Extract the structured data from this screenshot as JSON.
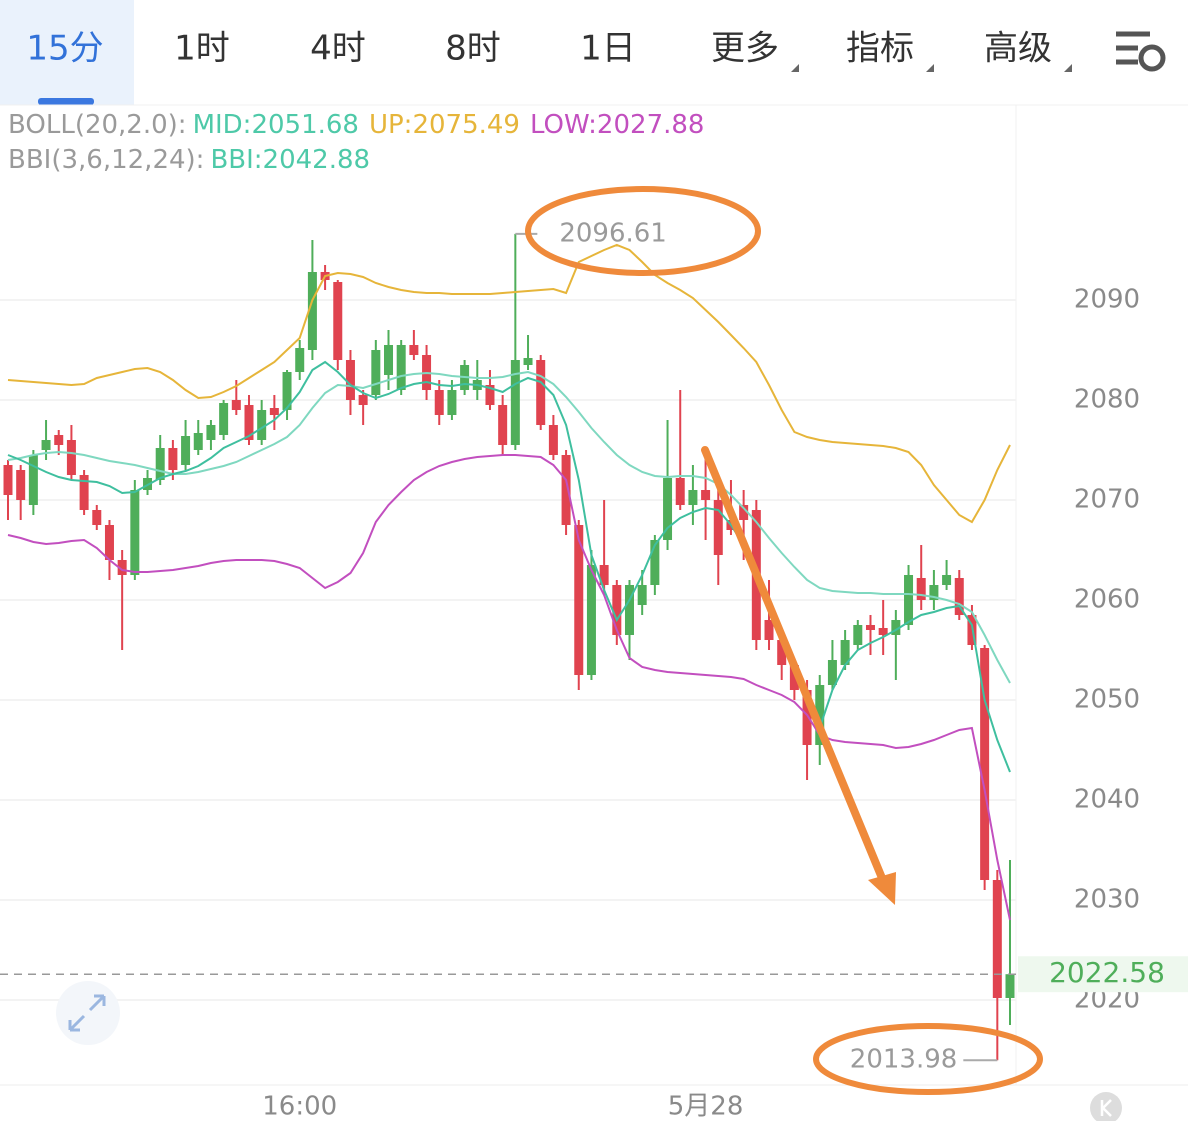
{
  "toolbar": {
    "tabs": [
      "15分",
      "1时",
      "4时",
      "8时",
      "1日"
    ],
    "menus": [
      "更多",
      "指标",
      "高级"
    ],
    "active": 0
  },
  "chart_data": {
    "type": "candlestick",
    "indicators": [
      {
        "label": "BOLL(20,2.0):",
        "items": [
          {
            "text": "MID:2051.68",
            "color": "#4ec9a8"
          },
          {
            "text": "UP:2075.49",
            "color": "#e6b53a"
          },
          {
            "text": "LOW:2027.88",
            "color": "#c24fbf"
          }
        ]
      },
      {
        "label": "BBI(3,6,12,24):",
        "items": [
          {
            "text": "BBI:2042.88",
            "color": "#4ec9a8"
          }
        ]
      }
    ],
    "categories": [
      null,
      null,
      null,
      null,
      null,
      null,
      null,
      null,
      null,
      null,
      null,
      null,
      null,
      null,
      null,
      null,
      null,
      null,
      null,
      null,
      null,
      null,
      null,
      "16:00",
      null,
      null,
      null,
      null,
      null,
      null,
      null,
      null,
      null,
      null,
      null,
      null,
      null,
      null,
      null,
      null,
      null,
      null,
      null,
      null,
      null,
      null,
      null,
      null,
      null,
      null,
      null,
      null,
      null,
      null,
      null,
      "5月28",
      null,
      null,
      null,
      null,
      null,
      null,
      null,
      null,
      null,
      null,
      null,
      null,
      null,
      null,
      null,
      null,
      null,
      null,
      null,
      null,
      null,
      null,
      null,
      null
    ],
    "open": [
      2073.5,
      2073,
      2069.5,
      2075,
      2076.5,
      2076,
      2072.5,
      2069,
      2067.5,
      2064,
      2062.5,
      2071,
      2072,
      2075.2,
      2073.5,
      2075,
      2076,
      2076.5,
      2080,
      2079.5,
      2076,
      2079.2,
      2079,
      2082.8,
      2085,
      2092.8,
      2091.8,
      2084,
      2080.5,
      2080.5,
      2082.5,
      2081,
      2085.5,
      2084.5,
      2081,
      2078.5,
      2081,
      2081,
      2081.5,
      2079.5,
      2075.5,
      2083.5,
      2084,
      2077.5,
      2074.5,
      2067.5,
      2052.5,
      2063.5,
      2061.5,
      2056.5,
      2059.5,
      2061.5,
      2066,
      2072.2,
      2069.5,
      2071,
      2070,
      2068,
      2069.5,
      2069,
      2058,
      2056,
      2053.5,
      2051,
      2045.5,
      2051.5,
      2053.5,
      2055.5,
      2057.5,
      2057.2,
      2056.5,
      2057.5,
      2062.2,
      2060,
      2061.5,
      2062.2,
      2058.5,
      2055.2,
      2032,
      2020.2
    ],
    "high": [
      2074,
      2073.5,
      2075,
      2078,
      2077,
      2077.5,
      2073,
      2069.5,
      2068,
      2065,
      2072,
      2073,
      2076.5,
      2076,
      2078,
      2078,
      2078,
      2080,
      2082,
      2080.5,
      2080,
      2080.5,
      2083,
      2086,
      2096,
      2093.5,
      2092,
      2085,
      2081,
      2086,
      2087,
      2086,
      2087,
      2085.5,
      2082,
      2082,
      2084,
      2084,
      2083,
      2080.5,
      2096.61,
      2086.5,
      2084.5,
      2078.5,
      2075,
      2068,
      2065,
      2070,
      2062,
      2062,
      2063,
      2066.5,
      2078,
      2081,
      2073.5,
      2075,
      2071.5,
      2072,
      2071,
      2070,
      2062,
      2057,
      2054,
      2052,
      2052.5,
      2056,
      2057,
      2058,
      2058.5,
      2060,
      2059,
      2063.5,
      2065.5,
      2063,
      2064,
      2063,
      2059.5,
      2055.5,
      2033,
      2034
    ],
    "low": [
      2068,
      2068,
      2068.5,
      2074,
      2074.5,
      2072,
      2068.5,
      2067,
      2062,
      2055,
      2062,
      2070.5,
      2071.5,
      2072,
      2073,
      2074.5,
      2075,
      2076,
      2078.5,
      2075.5,
      2075.5,
      2077,
      2078,
      2082,
      2084,
      2091,
      2083,
      2078.5,
      2077.5,
      2080,
      2081,
      2080.5,
      2084,
      2080,
      2077.5,
      2078,
      2080.5,
      2080,
      2079,
      2074.5,
      2075,
      2083,
      2077,
      2074,
      2066.5,
      2051,
      2052,
      2060.5,
      2055.5,
      2054,
      2058.5,
      2060.5,
      2065,
      2069,
      2067.5,
      2066,
      2061.5,
      2066.5,
      2064,
      2055,
      2055,
      2052,
      2050,
      2042,
      2043.5,
      2051,
      2053,
      2055,
      2054.5,
      2054.5,
      2052,
      2057,
      2059,
      2059,
      2061,
      2058,
      2055,
      2031,
      2013.98,
      2017.5
    ],
    "close": [
      2070.5,
      2070,
      2074.5,
      2076,
      2075.5,
      2072.5,
      2069,
      2067.5,
      2064,
      2062.5,
      2071,
      2072.2,
      2075.2,
      2073,
      2076.4,
      2076.7,
      2077.5,
      2079.7,
      2079,
      2076,
      2079,
      2078.5,
      2082.8,
      2085.2,
      2092.8,
      2092,
      2084,
      2080,
      2079.5,
      2085,
      2085.5,
      2085.5,
      2084.5,
      2081,
      2078.5,
      2081,
      2083.5,
      2082,
      2079.5,
      2075.5,
      2084,
      2084.2,
      2077.5,
      2074.5,
      2067.5,
      2052.5,
      2063.5,
      2061.5,
      2056.5,
      2061.5,
      2061.5,
      2066,
      2072.2,
      2069.5,
      2071,
      2070,
      2064.5,
      2067,
      2068,
      2056,
      2056,
      2053.5,
      2051,
      2045.5,
      2051.5,
      2054,
      2056,
      2057.5,
      2057,
      2056.5,
      2058,
      2062.5,
      2060,
      2061.5,
      2062.5,
      2058.5,
      2055.5,
      2032,
      2020.2,
      2022.58
    ],
    "up_color": "#4fae5a",
    "down_color": "#e0434f",
    "series": [
      {
        "color": "#e6b53a",
        "values": [
          2082,
          2081.9,
          2081.8,
          2081.7,
          2081.6,
          2081.5,
          2081.6,
          2082.2,
          2082.5,
          2082.8,
          2083.1,
          2083.2,
          2082.8,
          2082,
          2081,
          2080.2,
          2080.3,
          2080.8,
          2081.4,
          2082.2,
          2083,
          2083.8,
          2085,
          2086.2,
          2090,
          2092.4,
          2092.7,
          2092.6,
          2092.3,
          2091.7,
          2091.3,
          2091,
          2090.8,
          2090.7,
          2090.7,
          2090.6,
          2090.6,
          2090.6,
          2090.6,
          2090.7,
          2090.8,
          2090.9,
          2091,
          2091.1,
          2090.7,
          2093.8,
          2094.4,
          2095,
          2095.5,
          2095,
          2093.8,
          2092.5,
          2091.7,
          2091,
          2090.2,
          2089,
          2087.8,
          2086.5,
          2085.2,
          2083.8,
          2081.5,
          2079,
          2076.8,
          2076.3,
          2076,
          2075.8,
          2075.7,
          2075.6,
          2075.5,
          2075.4,
          2075.2,
          2074.8,
          2073.5,
          2071.5,
          2070,
          2068.5,
          2067.8,
          2070,
          2073,
          2075.5
        ]
      },
      {
        "color": "#7fd8c0",
        "values": [
          2074,
          2074.2,
          2074.5,
          2074.7,
          2074.8,
          2074.7,
          2074.5,
          2074.2,
          2073.9,
          2073.7,
          2073.5,
          2073.2,
          2072.9,
          2072.6,
          2072.6,
          2072.8,
          2073.1,
          2073.4,
          2073.8,
          2074.4,
          2075,
          2075.6,
          2076.3,
          2077.5,
          2079.2,
          2080.7,
          2081.5,
          2081.4,
          2081.2,
          2081.6,
          2082,
          2082.4,
          2082.6,
          2082.7,
          2082.6,
          2082.4,
          2082.3,
          2082.2,
          2082.2,
          2082.3,
          2082.6,
          2082.8,
          2082.4,
          2081.6,
          2080.3,
          2078.8,
          2077.2,
          2075.8,
          2074.5,
          2073.5,
          2072.8,
          2072.4,
          2072.3,
          2072.4,
          2072.4,
          2072.2,
          2071.6,
          2070.5,
          2069.2,
          2067.8,
          2066.2,
          2064.7,
          2063.3,
          2062,
          2061.2,
          2060.9,
          2060.8,
          2060.7,
          2060.7,
          2060.6,
          2060.6,
          2060.6,
          2060.5,
          2060.3,
          2060,
          2059.6,
          2058.8,
          2056.5,
          2054,
          2051.7
        ]
      },
      {
        "color": "#c24fbf",
        "values": [
          2066.5,
          2066.2,
          2065.8,
          2065.6,
          2065.7,
          2065.9,
          2066,
          2065.2,
          2064,
          2063,
          2062.8,
          2062.8,
          2062.9,
          2063,
          2063.2,
          2063.4,
          2063.7,
          2063.9,
          2064,
          2064,
          2064,
          2063.9,
          2063.6,
          2063.2,
          2062.2,
          2061.2,
          2061.8,
          2062.7,
          2064.7,
          2067.8,
          2069.5,
          2070.8,
          2072,
          2072.8,
          2073.4,
          2073.8,
          2074.1,
          2074.3,
          2074.4,
          2074.5,
          2074.5,
          2074.4,
          2074.3,
          2073.5,
          2072,
          2066,
          2063,
          2060.5,
          2057,
          2054.2,
          2053.3,
          2053,
          2052.8,
          2052.7,
          2052.6,
          2052.5,
          2052.4,
          2052.3,
          2052.1,
          2051.5,
          2051,
          2050.5,
          2049.8,
          2048.5,
          2046.5,
          2046,
          2045.8,
          2045.7,
          2045.6,
          2045.5,
          2045.2,
          2045.3,
          2045.6,
          2046,
          2046.5,
          2047,
          2047.2,
          2041,
          2034,
          2028
        ]
      },
      {
        "color": "#3fbf9f",
        "values": [
          2074.5,
          2074,
          2073.4,
          2072.8,
          2072.3,
          2072,
          2071.9,
          2071.8,
          2071.4,
          2070.7,
          2070.8,
          2071.5,
          2072.2,
          2072.6,
          2072.9,
          2073.4,
          2074.2,
          2075.2,
          2075.8,
          2076.4,
          2077.2,
          2078,
          2079.2,
          2080.8,
          2083,
          2083.8,
          2082.8,
          2081.5,
          2080.7,
          2080.2,
          2080.6,
          2081.2,
          2081.6,
          2081.8,
          2081.5,
          2081.4,
          2081.6,
          2081.5,
          2081.2,
          2080.8,
          2081.6,
          2082.2,
          2081.8,
          2080.5,
          2077.5,
          2072,
          2064.5,
          2061,
          2058,
          2060,
          2062.5,
          2065.5,
          2067.2,
          2068.2,
          2068.8,
          2069.2,
          2069,
          2067.5,
          2065.5,
          2063,
          2060,
          2057,
          2053.5,
          2049.5,
          2047.2,
          2051,
          2053.5,
          2055,
          2055.7,
          2056.3,
          2057,
          2057.8,
          2058.5,
          2058.8,
          2059.2,
          2059.4,
          2057.5,
          2050,
          2046,
          2042.8
        ]
      }
    ],
    "ylim": [
      2011.5,
      2109.5
    ],
    "yticks": [
      2020,
      2030,
      2040,
      2050,
      2060,
      2070,
      2080,
      2090
    ],
    "grid": true,
    "high_label": "2096.61",
    "low_label": "2013.98",
    "last_label": "2022.58"
  }
}
